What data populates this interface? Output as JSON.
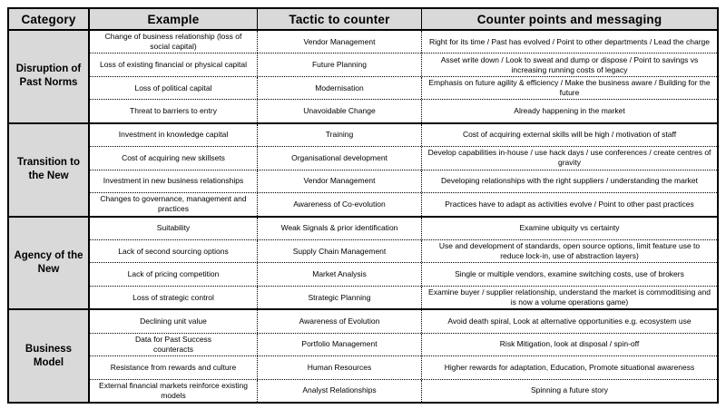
{
  "header": {
    "category": "Category",
    "example": "Example",
    "tactic": "Tactic to counter",
    "counter": "Counter points and messaging"
  },
  "groups": [
    {
      "category": "Disruption of Past Norms",
      "rows": [
        {
          "example": "Change of business relationship (loss of social capital)",
          "tactic": "Vendor Management",
          "counter": "Right for its time / Past has evolved / Point to other departments / Lead the charge"
        },
        {
          "example": "Loss of existing financial or physical capital",
          "tactic": "Future Planning",
          "counter": "Asset write down / Look to sweat and dump or dispose / Point to savings vs increasing running costs of legacy"
        },
        {
          "example": "Loss of political capital",
          "tactic": "Modernisation",
          "counter": "Emphasis on future agility & efficiency / Make the business aware / Building for the future"
        },
        {
          "example": "Threat to barriers to entry",
          "tactic": "Unavoidable Change",
          "counter": "Already happening in the market"
        }
      ]
    },
    {
      "category": "Transition to the New",
      "rows": [
        {
          "example": "Investment in knowledge capital",
          "tactic": "Training",
          "counter": "Cost of acquiring external skills will be high / motivation of staff"
        },
        {
          "example": "Cost of acquiring new skillsets",
          "tactic": "Organisational development",
          "counter": "Develop capabilities in-house / use hack days / use conferences / create centres of gravity"
        },
        {
          "example": "Investment in new business relationships",
          "tactic": "Vendor Management",
          "counter": "Developing relationships with the right suppliers / understanding the market"
        },
        {
          "example": "Changes to governance, management and practices",
          "tactic": "Awareness of Co-evolution",
          "counter": "Practices have to adapt as activities evolve / Point to other past practices"
        }
      ]
    },
    {
      "category": "Agency of the New",
      "rows": [
        {
          "example": "Suitability",
          "tactic": "Weak Signals & prior identification",
          "counter": "Examine ubiquity vs certainty"
        },
        {
          "example": "Lack of second sourcing options",
          "tactic": "Supply Chain Management",
          "counter": "Use and development of standards, open source options, limit feature use to reduce lock-in, use of abstraction layers)"
        },
        {
          "example": "Lack of pricing competition",
          "tactic": "Market Analysis",
          "counter": "Single or multiple vendors, examine switching costs, use of brokers"
        },
        {
          "example": "Loss of strategic control",
          "tactic": "Strategic Planning",
          "counter": "Examine buyer / supplier relationship, understand the market is commoditising and is now a volume operations game)"
        }
      ]
    },
    {
      "category": "Business Model",
      "rows": [
        {
          "example": "Declining unit value",
          "tactic": "Awareness of Evolution",
          "counter": "Avoid death spiral, Look at alternative opportunities e.g. ecosystem use"
        },
        {
          "example": "Data for Past Success\ncounteracts",
          "tactic": "Portfolio Management",
          "counter": "Risk Mitigation, look at disposal / spin-off"
        },
        {
          "example": "Resistance from rewards and culture",
          "tactic": "Human Resources",
          "counter": "Higher rewards for adaptation, Education, Promote situational awareness"
        },
        {
          "example": "External financial markets reinforce existing models",
          "tactic": "Analyst Relationships",
          "counter": "Spinning a future story"
        }
      ]
    }
  ],
  "colors": {
    "header_bg": "#d9d9d9",
    "border_color": "#000000",
    "body_bg": "#ffffff",
    "text_color": "#000000"
  }
}
